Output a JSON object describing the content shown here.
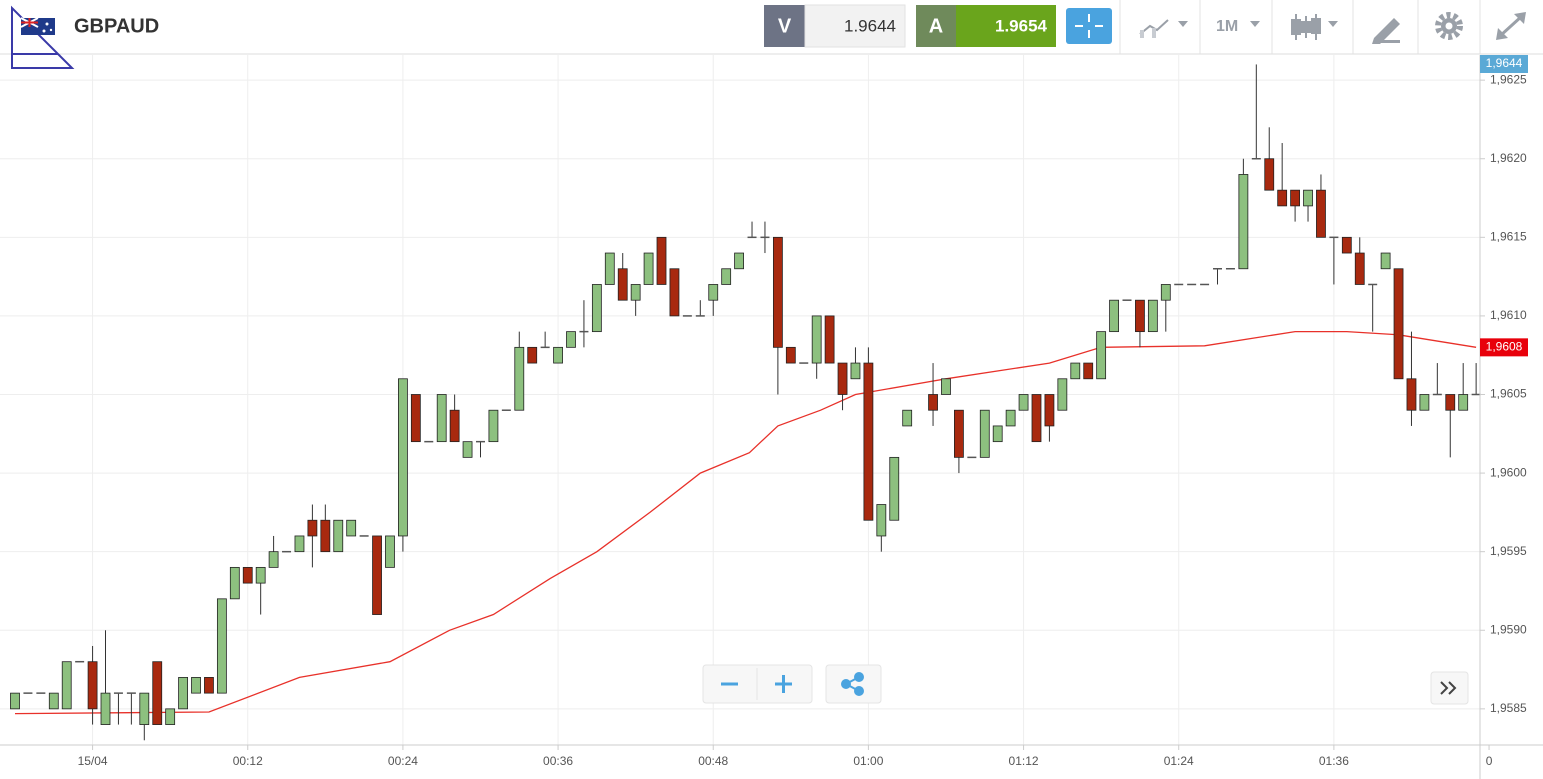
{
  "header": {
    "symbol": "GBPAUD",
    "sell_label": "V",
    "sell_price": "1.9644",
    "buy_label": "A",
    "buy_price": "1.9654",
    "timeframe": "1M"
  },
  "chart_data": {
    "type": "candlestick",
    "x": [
      -6,
      -5,
      -4,
      -3,
      -2,
      -1,
      0,
      1,
      2,
      3,
      4,
      5,
      6,
      7,
      8,
      9,
      10,
      11,
      12,
      13,
      14,
      15,
      16,
      17,
      18,
      19,
      20,
      21,
      22,
      23,
      24,
      25,
      26,
      27,
      28,
      29,
      30,
      31,
      32,
      33,
      34,
      35,
      36,
      37,
      38,
      39,
      40,
      41,
      42,
      43,
      44,
      45,
      46,
      47,
      48,
      49,
      50,
      51,
      52,
      53,
      54,
      55,
      56,
      57,
      58,
      59,
      60,
      61,
      62,
      63,
      65,
      66,
      67,
      68,
      69,
      70,
      71,
      72,
      73,
      74,
      75,
      76,
      77,
      78,
      79,
      80,
      81,
      82,
      83,
      84,
      85,
      86,
      87,
      88,
      89,
      90,
      91,
      92,
      93,
      94,
      95,
      96,
      97,
      98,
      99,
      100,
      101,
      102,
      103,
      104,
      105,
      106,
      107
    ],
    "open": [
      1.9585,
      1.9586,
      1.9586,
      1.9585,
      1.9585,
      1.9588,
      1.9588,
      1.9584,
      1.9586,
      1.9586,
      1.9584,
      1.9588,
      1.9584,
      1.9585,
      1.9586,
      1.9587,
      1.9586,
      1.9592,
      1.9594,
      1.9593,
      1.9594,
      1.9595,
      1.9595,
      1.9597,
      1.9597,
      1.9595,
      1.9596,
      1.9596,
      1.9596,
      1.9594,
      1.9596,
      1.9605,
      1.9602,
      1.9602,
      1.9604,
      1.9601,
      1.9602,
      1.9602,
      1.9604,
      1.9604,
      1.9608,
      1.9608,
      1.9607,
      1.9608,
      1.9609,
      1.9609,
      1.9612,
      1.9613,
      1.9611,
      1.9612,
      1.9615,
      1.9613,
      1.961,
      1.961,
      1.9611,
      1.9612,
      1.9613,
      1.9615,
      1.9615,
      1.9615,
      1.9608,
      1.9607,
      1.9607,
      1.961,
      1.9607,
      1.9606,
      1.9607,
      1.9596,
      1.9597,
      1.9603,
      1.9605,
      1.9605,
      1.9604,
      1.9601,
      1.9601,
      1.9602,
      1.9603,
      1.9604,
      1.9605,
      1.9605,
      1.9604,
      1.9606,
      1.9607,
      1.9606,
      1.9609,
      1.9611,
      1.9611,
      1.9609,
      1.9611,
      1.9612,
      1.9612,
      1.9612,
      1.9613,
      1.9613,
      1.9613,
      1.962,
      1.962,
      1.9618,
      1.9618,
      1.9617,
      1.9618,
      1.9615,
      1.9615,
      1.9614,
      1.9612,
      1.9613,
      1.9613,
      1.9606,
      1.9604,
      1.9605,
      1.9605,
      1.9604,
      1.9605
    ],
    "high": [
      1.9586,
      1.9586,
      1.9586,
      1.9586,
      1.9588,
      1.9588,
      1.9589,
      1.959,
      1.9586,
      1.9586,
      1.9586,
      1.9588,
      1.9585,
      1.9587,
      1.9587,
      1.9587,
      1.9592,
      1.9594,
      1.9594,
      1.9594,
      1.9596,
      1.9595,
      1.9596,
      1.9598,
      1.9598,
      1.9597,
      1.9597,
      1.9596,
      1.9596,
      1.9596,
      1.9606,
      1.9605,
      1.9602,
      1.9605,
      1.9605,
      1.9602,
      1.9602,
      1.9604,
      1.9604,
      1.9609,
      1.9608,
      1.9609,
      1.9608,
      1.9609,
      1.9611,
      1.9612,
      1.9614,
      1.9614,
      1.9612,
      1.9614,
      1.9615,
      1.9613,
      1.961,
      1.9611,
      1.9612,
      1.9613,
      1.9614,
      1.9616,
      1.9616,
      1.9615,
      1.9608,
      1.9607,
      1.961,
      1.961,
      1.9607,
      1.9608,
      1.9608,
      1.9598,
      1.9601,
      1.9604,
      1.9607,
      1.9606,
      1.9604,
      1.9601,
      1.9604,
      1.9603,
      1.9604,
      1.9605,
      1.9605,
      1.9605,
      1.9606,
      1.9607,
      1.9607,
      1.9609,
      1.9611,
      1.9611,
      1.9611,
      1.9611,
      1.9612,
      1.9612,
      1.9612,
      1.9612,
      1.9613,
      1.9613,
      1.962,
      1.9626,
      1.9622,
      1.9621,
      1.9618,
      1.9618,
      1.9619,
      1.9615,
      1.9615,
      1.9615,
      1.9612,
      1.9614,
      1.9613,
      1.9609,
      1.9605,
      1.9607,
      1.9605,
      1.9607,
      1.9607
    ],
    "low": [
      1.9585,
      1.9586,
      1.9586,
      1.9585,
      1.9585,
      1.9588,
      1.9584,
      1.9584,
      1.9584,
      1.9584,
      1.9583,
      1.9584,
      1.9584,
      1.9585,
      1.9586,
      1.9586,
      1.9586,
      1.9592,
      1.9593,
      1.9591,
      1.9594,
      1.9595,
      1.9595,
      1.9594,
      1.9595,
      1.9595,
      1.9596,
      1.9596,
      1.9591,
      1.9594,
      1.9595,
      1.9602,
      1.9602,
      1.9602,
      1.9602,
      1.9601,
      1.9601,
      1.9602,
      1.9604,
      1.9604,
      1.9607,
      1.9608,
      1.9607,
      1.9608,
      1.9608,
      1.9609,
      1.9612,
      1.9611,
      1.961,
      1.9612,
      1.9612,
      1.961,
      1.961,
      1.961,
      1.961,
      1.9612,
      1.9613,
      1.9615,
      1.9614,
      1.9605,
      1.9607,
      1.9607,
      1.9606,
      1.9607,
      1.9604,
      1.9606,
      1.9597,
      1.9595,
      1.9597,
      1.9603,
      1.9603,
      1.9605,
      1.96,
      1.9601,
      1.9601,
      1.9602,
      1.9603,
      1.9604,
      1.9602,
      1.9602,
      1.9604,
      1.9606,
      1.9606,
      1.9606,
      1.9609,
      1.9611,
      1.9608,
      1.9609,
      1.9609,
      1.9612,
      1.9612,
      1.9612,
      1.9612,
      1.9613,
      1.9613,
      1.962,
      1.9618,
      1.9617,
      1.9616,
      1.9616,
      1.9615,
      1.9612,
      1.9614,
      1.9612,
      1.9609,
      1.9613,
      1.9606,
      1.9603,
      1.9604,
      1.9605,
      1.9601,
      1.9604,
      1.9605
    ],
    "close": [
      1.9586,
      1.9586,
      1.9586,
      1.9586,
      1.9588,
      1.9588,
      1.9585,
      1.9586,
      1.9586,
      1.9586,
      1.9586,
      1.9584,
      1.9585,
      1.9587,
      1.9587,
      1.9586,
      1.9592,
      1.9594,
      1.9593,
      1.9594,
      1.9595,
      1.9595,
      1.9596,
      1.9596,
      1.9595,
      1.9597,
      1.9597,
      1.9596,
      1.9591,
      1.9596,
      1.9606,
      1.9602,
      1.9602,
      1.9605,
      1.9602,
      1.9602,
      1.9602,
      1.9604,
      1.9604,
      1.9608,
      1.9607,
      1.9608,
      1.9608,
      1.9609,
      1.9609,
      1.9612,
      1.9614,
      1.9611,
      1.9612,
      1.9614,
      1.9612,
      1.961,
      1.961,
      1.961,
      1.9612,
      1.9613,
      1.9614,
      1.9615,
      1.9615,
      1.9608,
      1.9607,
      1.9607,
      1.961,
      1.9607,
      1.9605,
      1.9607,
      1.9597,
      1.9598,
      1.9601,
      1.9604,
      1.9604,
      1.9606,
      1.9601,
      1.9601,
      1.9604,
      1.9603,
      1.9604,
      1.9605,
      1.9602,
      1.9603,
      1.9606,
      1.9607,
      1.9606,
      1.9609,
      1.9611,
      1.9611,
      1.9609,
      1.9611,
      1.9612,
      1.9612,
      1.9612,
      1.9612,
      1.9613,
      1.9613,
      1.9619,
      1.962,
      1.9618,
      1.9617,
      1.9617,
      1.9618,
      1.9615,
      1.9615,
      1.9614,
      1.9612,
      1.9612,
      1.9614,
      1.9606,
      1.9604,
      1.9605,
      1.9605,
      1.9604,
      1.9605,
      1.9605
    ],
    "up_color": "#8dc07f",
    "down_color": "#a8290f",
    "doji_color": "#555555",
    "moving_average": {
      "color": "#e8312a",
      "x": [
        -6,
        9,
        16,
        23,
        27.6,
        31,
        35.4,
        39,
        43.1,
        47,
        50.8,
        53,
        56.3,
        59,
        66,
        74,
        78,
        86,
        93,
        97,
        101,
        107
      ],
      "values": [
        1.95847,
        1.95848,
        1.9587,
        1.9588,
        1.959,
        1.9591,
        1.95933,
        1.9595,
        1.95975,
        1.96,
        1.96013,
        1.9603,
        1.9604,
        1.9605,
        1.9606,
        1.9607,
        1.9608,
        1.96081,
        1.9609,
        1.9609,
        1.96088,
        1.9608
      ]
    },
    "xlim": [
      -7.16,
      107.3
    ],
    "xticks": [
      {
        "value": 0,
        "label": "15/04"
      },
      {
        "value": 12,
        "label": "00:12"
      },
      {
        "value": 24,
        "label": "00:24"
      },
      {
        "value": 36,
        "label": "00:36"
      },
      {
        "value": 48,
        "label": "00:48"
      },
      {
        "value": 60,
        "label": "01:00"
      },
      {
        "value": 72,
        "label": "01:12"
      },
      {
        "value": 84,
        "label": "01:24"
      },
      {
        "value": 96,
        "label": "01:36"
      },
      {
        "value": 108,
        "label": "0"
      }
    ],
    "ylim": [
      1.95827,
      1.96266
    ],
    "yticks": [
      {
        "value": 1.9585,
        "label": "1,9585"
      },
      {
        "value": 1.959,
        "label": "1,9590"
      },
      {
        "value": 1.9595,
        "label": "1,9595"
      },
      {
        "value": 1.96,
        "label": "1,9600"
      },
      {
        "value": 1.9605,
        "label": "1,9605"
      },
      {
        "value": 1.961,
        "label": "1,9610"
      },
      {
        "value": 1.9615,
        "label": "1,9615"
      },
      {
        "value": 1.962,
        "label": "1,9620"
      },
      {
        "value": 1.9625,
        "label": "1,9625"
      }
    ],
    "grid": true,
    "price_badges": [
      {
        "label": "1,9644",
        "color": "#5aa9d6"
      },
      {
        "label": "1,9608",
        "color": "#e8000b"
      }
    ]
  }
}
